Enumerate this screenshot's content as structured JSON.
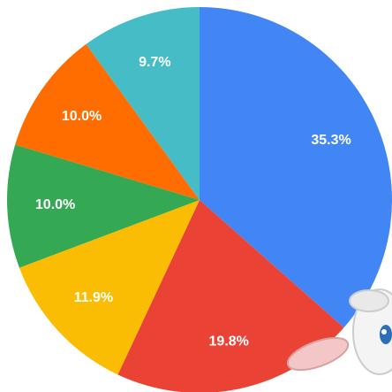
{
  "chart_data": {
    "type": "pie",
    "categories": [
      null,
      null,
      null,
      null,
      null,
      null
    ],
    "values": [
      35.3,
      19.8,
      11.9,
      10.0,
      10.0,
      9.7
    ],
    "value_labels": [
      "35.3%",
      "19.8%",
      "11.9%",
      "10.0%",
      "10.0%",
      "9.7%"
    ],
    "colors": [
      "#4285f4",
      "#ea4335",
      "#fbbc04",
      "#34a853",
      "#ff6d01",
      "#46bdc6"
    ]
  }
}
